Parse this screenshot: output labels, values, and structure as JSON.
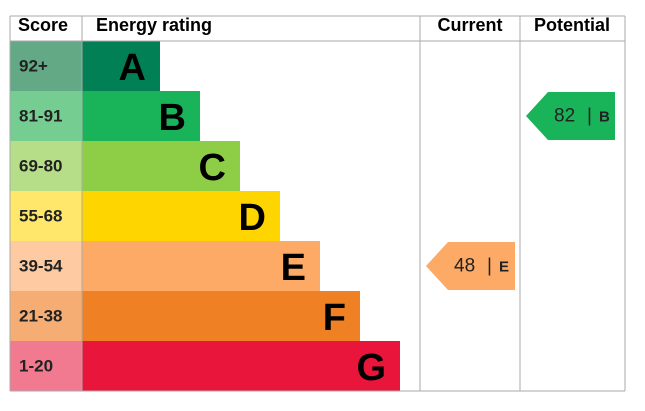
{
  "chart_data": {
    "type": "epc",
    "headers": [
      "Score",
      "Energy rating",
      "Current",
      "Potential"
    ],
    "bands": [
      {
        "score": "92+",
        "letter": "A",
        "color": "#008054",
        "score_color": "#63a985"
      },
      {
        "score": "81-91",
        "letter": "B",
        "color": "#19b459",
        "score_color": "#76cd91"
      },
      {
        "score": "69-80",
        "letter": "C",
        "color": "#8dce46",
        "score_color": "#b6de88"
      },
      {
        "score": "55-68",
        "letter": "D",
        "color": "#ffd500",
        "score_color": "#ffe76c"
      },
      {
        "score": "39-54",
        "letter": "E",
        "color": "#fcaa65",
        "score_color": "#fdcaa1"
      },
      {
        "score": "21-38",
        "letter": "F",
        "color": "#ef8023",
        "score_color": "#f5ad74"
      },
      {
        "score": "1-20",
        "letter": "G",
        "color": "#e9153b",
        "score_color": "#f27a90"
      }
    ],
    "current": {
      "value": 48,
      "letter": "E"
    },
    "potential": {
      "value": 82,
      "letter": "B"
    },
    "separator": "|"
  }
}
